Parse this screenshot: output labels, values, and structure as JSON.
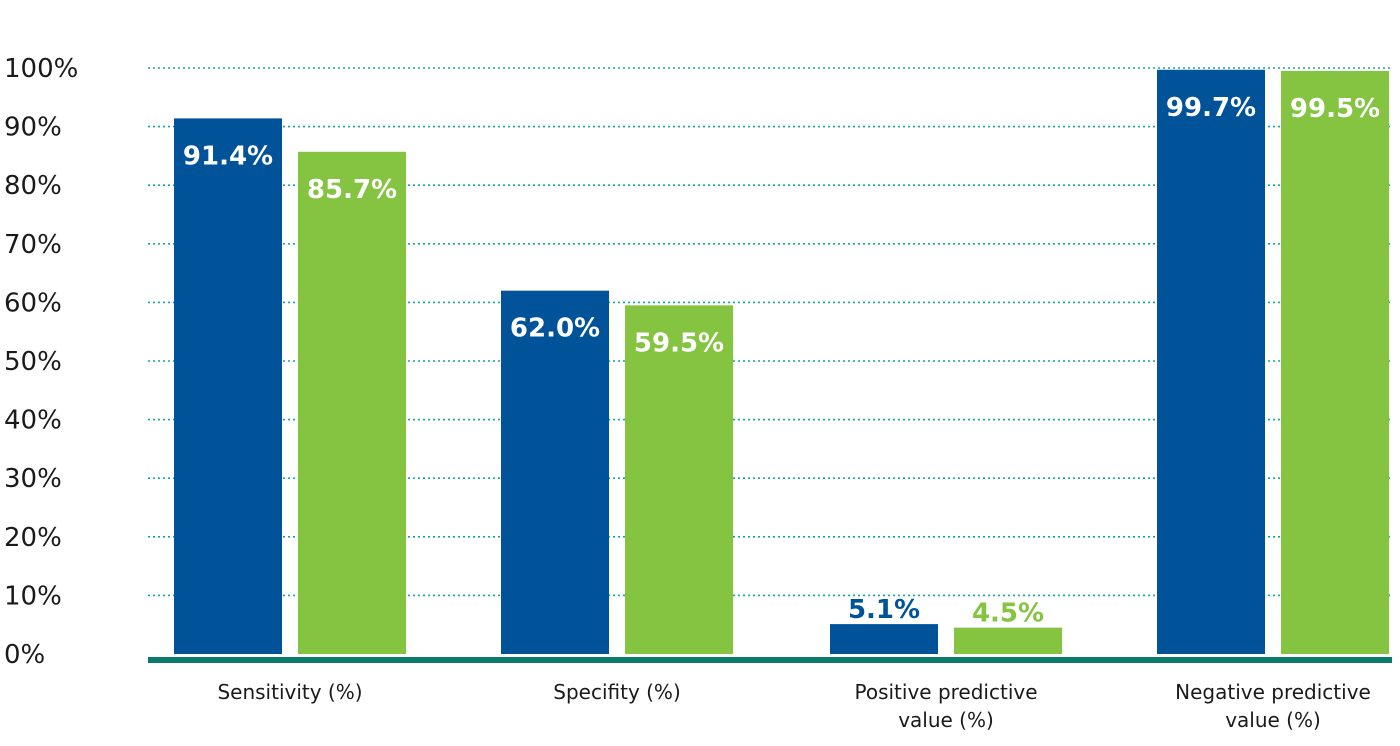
{
  "chart_data": {
    "type": "bar",
    "title": "",
    "xlabel": "",
    "ylabel": "",
    "ylim": [
      0,
      100
    ],
    "yticks": [
      "0%",
      "10%",
      "20%",
      "30%",
      "40%",
      "50%",
      "60%",
      "70%",
      "80%",
      "90%",
      "100%"
    ],
    "grid": true,
    "legend": "none",
    "categories": [
      [
        "Sensitivity (%)"
      ],
      [
        "Specifity (%)"
      ],
      [
        "Positive predictive",
        "value (%)"
      ],
      [
        "Negative predictive",
        "value (%)"
      ]
    ],
    "series": [
      {
        "color": "#005299",
        "values": [
          91.4,
          62.0,
          5.1,
          99.7
        ],
        "labels": [
          "91.4%",
          "62.0%",
          "5.1%",
          "99.7%"
        ]
      },
      {
        "color": "#84c441",
        "values": [
          85.7,
          59.5,
          4.5,
          99.5
        ],
        "labels": [
          "85.7%",
          "59.5%",
          "4.5%",
          "99.5%"
        ]
      }
    ],
    "gridline_color": "#1aa3a3",
    "baseline_color": "#0d7a6e"
  }
}
